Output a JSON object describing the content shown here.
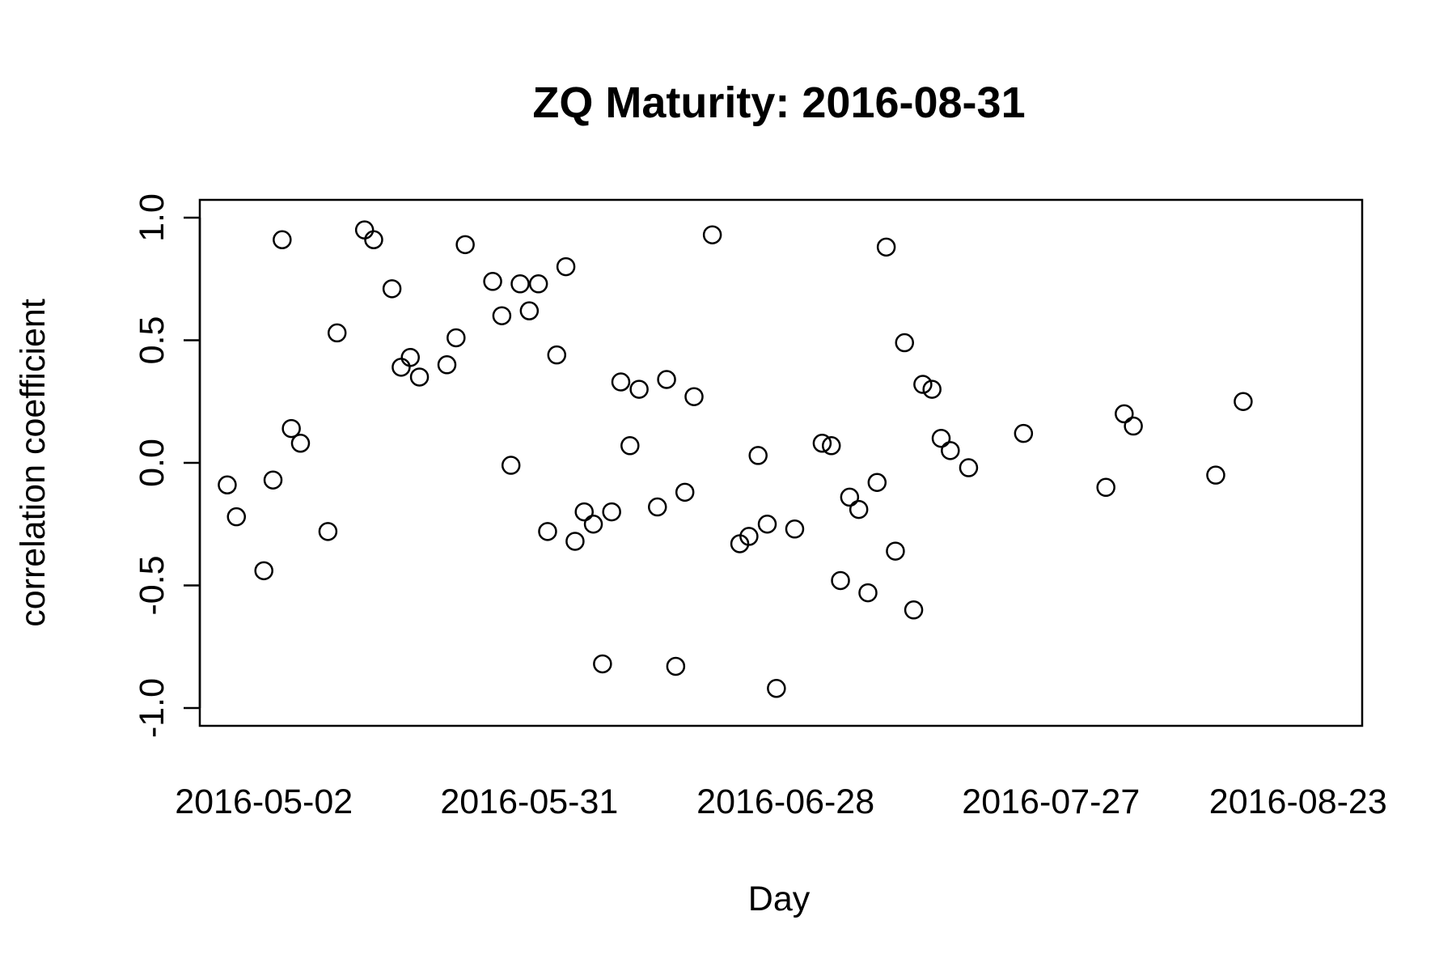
{
  "chart_data": {
    "type": "scatter",
    "title": "ZQ Maturity: 2016-08-31",
    "xlabel": "Day",
    "ylabel": "correlation coefficient",
    "xlim": [
      "2016-04-25",
      "2016-08-30"
    ],
    "ylim": [
      -1.0,
      1.0
    ],
    "x_ticks": [
      "2016-05-02",
      "2016-05-31",
      "2016-06-28",
      "2016-07-27",
      "2016-08-23"
    ],
    "y_ticks": [
      "-1.0",
      "-0.5",
      "0.0",
      "0.5",
      "1.0"
    ],
    "grid": false,
    "legend": "none",
    "marker": "open-circle",
    "series": [
      {
        "x": [
          "2016-04-28",
          "2016-04-29",
          "2016-05-02",
          "2016-05-03",
          "2016-05-04",
          "2016-05-05",
          "2016-05-06",
          "2016-05-09",
          "2016-05-10",
          "2016-05-13",
          "2016-05-14",
          "2016-05-16",
          "2016-05-17",
          "2016-05-18",
          "2016-05-19",
          "2016-05-22",
          "2016-05-23",
          "2016-05-24",
          "2016-05-27",
          "2016-05-28",
          "2016-05-29",
          "2016-05-30",
          "2016-05-31",
          "2016-06-01",
          "2016-06-02",
          "2016-06-03",
          "2016-06-04",
          "2016-06-05",
          "2016-06-06",
          "2016-06-07",
          "2016-06-08",
          "2016-06-09",
          "2016-06-10",
          "2016-06-11",
          "2016-06-12",
          "2016-06-14",
          "2016-06-15",
          "2016-06-16",
          "2016-06-17",
          "2016-06-18",
          "2016-06-20",
          "2016-06-23",
          "2016-06-24",
          "2016-06-25",
          "2016-06-26",
          "2016-06-27",
          "2016-06-29",
          "2016-07-02",
          "2016-07-03",
          "2016-07-04",
          "2016-07-05",
          "2016-07-06",
          "2016-07-07",
          "2016-07-08",
          "2016-07-09",
          "2016-07-10",
          "2016-07-11",
          "2016-07-12",
          "2016-07-13",
          "2016-07-14",
          "2016-07-15",
          "2016-07-16",
          "2016-07-18",
          "2016-07-24",
          "2016-08-02",
          "2016-08-04",
          "2016-08-05",
          "2016-08-14",
          "2016-08-17"
        ],
        "y": [
          -0.09,
          -0.22,
          -0.44,
          -0.07,
          0.91,
          0.14,
          0.08,
          -0.28,
          0.53,
          0.95,
          0.91,
          0.71,
          0.39,
          0.43,
          0.35,
          0.4,
          0.51,
          0.89,
          0.74,
          0.6,
          -0.01,
          0.73,
          0.62,
          0.73,
          -0.28,
          0.44,
          0.8,
          -0.32,
          -0.2,
          -0.25,
          -0.82,
          -0.2,
          0.33,
          0.07,
          0.3,
          -0.18,
          0.34,
          -0.83,
          -0.12,
          0.27,
          0.93,
          -0.33,
          -0.3,
          0.03,
          -0.25,
          -0.92,
          -0.27,
          0.08,
          0.07,
          -0.48,
          -0.14,
          -0.19,
          -0.53,
          -0.08,
          0.88,
          -0.36,
          0.49,
          -0.6,
          0.32,
          0.3,
          0.1,
          0.05,
          -0.02,
          0.12,
          -0.1,
          0.2,
          0.15,
          -0.05,
          0.25
        ]
      }
    ]
  }
}
